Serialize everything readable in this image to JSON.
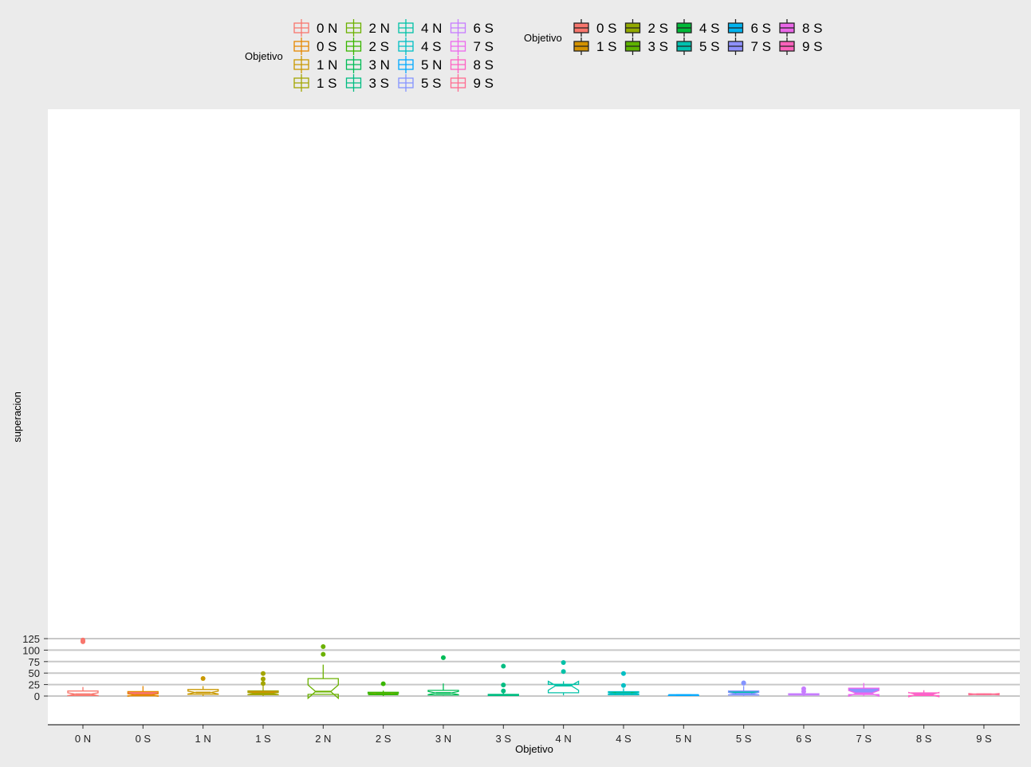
{
  "chart_data": {
    "type": "boxplot",
    "xlabel": "Objetivo",
    "ylabel": "superacion",
    "ylim": [
      -6,
      128
    ],
    "y_ticks": [
      0,
      25,
      50,
      75,
      100,
      125
    ],
    "grid": "horizontal major",
    "categories": [
      "0 N",
      "0 S",
      "1 N",
      "1 S",
      "2 N",
      "2 S",
      "3 N",
      "3 S",
      "4 N",
      "4 S",
      "5 N",
      "5 S",
      "6 S",
      "7 S",
      "8 S",
      "9 S"
    ],
    "boxes": [
      {
        "x": "0 N",
        "color": "#f8766d",
        "fill": "none",
        "q1": 1,
        "median": 4,
        "q3": 11,
        "whisker_low": 0,
        "whisker_high": 19.7,
        "notch_low": 0.9,
        "notch_high": 7.1,
        "outliers": [
          118.3,
          119.3,
          121.9
        ]
      },
      {
        "x": "0 S",
        "color": "#e58700",
        "fill": "#f8766d",
        "q1": 0.6,
        "median": 2.2,
        "q3": 9.8,
        "whisker_low": 0,
        "whisker_high": 21.8,
        "notch_low": -0.4,
        "notch_high": 4.8,
        "outliers": []
      },
      {
        "x": "1 N",
        "color": "#c99800",
        "fill": "none",
        "q1": 3.7,
        "median": 7.6,
        "q3": 14.3,
        "whisker_low": 0,
        "whisker_high": 21.6,
        "notch_low": 4.5,
        "notch_high": 10.7,
        "outliers": [
          38.2
        ]
      },
      {
        "x": "1 S",
        "color": "#a3a500",
        "fill": "#d39200",
        "q1": 3,
        "median": 5.4,
        "q3": 11.2,
        "whisker_low": 0,
        "whisker_high": 23.2,
        "notch_low": 3.1,
        "notch_high": 7.7,
        "outliers": [
          27.3,
          37.1,
          49
        ]
      },
      {
        "x": "2 N",
        "color": "#6bb100",
        "fill": "none",
        "q1": 3.7,
        "median": 9.7,
        "q3": 38,
        "whisker_low": 3.7,
        "whisker_high": 68.4,
        "notch_low": -4.8,
        "notch_high": 24.2,
        "outliers": [
          91,
          107.6
        ]
      },
      {
        "x": "2 S",
        "color": "#39b600",
        "fill": "#93aa00",
        "q1": 3,
        "median": 4.4,
        "q3": 8.2,
        "whisker_low": 0,
        "whisker_high": 11.8,
        "notch_low": 3,
        "notch_high": 5.8,
        "outliers": [
          26.8
        ]
      },
      {
        "x": "3 N",
        "color": "#00bc56",
        "fill": "none",
        "q1": 2.4,
        "median": 6.5,
        "q3": 12.4,
        "whisker_low": 1,
        "whisker_high": 27.4,
        "notch_low": 2.9,
        "notch_high": 10.1,
        "outliers": [
          83.6
        ]
      },
      {
        "x": "3 S",
        "color": "#00bd82",
        "fill": "#5eb300",
        "q1": 1,
        "median": 1.9,
        "q3": 3.6,
        "whisker_low": 0.5,
        "whisker_high": 6.5,
        "notch_low": 1.4,
        "notch_high": 2.4,
        "outliers": [
          11,
          24.1,
          65
        ]
      },
      {
        "x": "4 N",
        "color": "#00c1a7",
        "fill": "none",
        "q1": 7.2,
        "median": 22.7,
        "q3": 25.6,
        "whisker_low": 1.5,
        "whisker_high": 32.2,
        "notch_low": 12.7,
        "notch_high": 32.2,
        "outliers": [
          53.4,
          73
        ]
      },
      {
        "x": "4 S",
        "color": "#00bfc4",
        "fill": "#00ba38",
        "q1": 3,
        "median": 5.9,
        "q3": 9.6,
        "whisker_low": 1.3,
        "whisker_high": 16.6,
        "notch_low": 4.3,
        "notch_high": 7.5,
        "outliers": [
          23.1,
          49
        ]
      },
      {
        "x": "5 N",
        "color": "#00a9ff",
        "fill": "none",
        "q1": 1.4,
        "median": 2.1,
        "q3": 2.9,
        "whisker_low": 1.4,
        "whisker_high": 2.9,
        "notch_low": 1.2,
        "notch_high": 3,
        "outliers": []
      },
      {
        "x": "5 S",
        "color": "#8494ff",
        "fill": "#00c0af",
        "q1": 2.3,
        "median": 5.1,
        "q3": 10.9,
        "whisker_low": 0,
        "whisker_high": 21.9,
        "notch_low": 2.4,
        "notch_high": 7.8,
        "outliers": [
          28,
          28.6
        ]
      },
      {
        "x": "6 S",
        "color": "#c77cff",
        "fill": "#00b4f0",
        "q1": 2.3,
        "median": 3.7,
        "q3": 4.9,
        "whisker_low": 0,
        "whisker_high": 7.3,
        "notch_low": 2.9,
        "notch_high": 4.5,
        "outliers": [
          10,
          15.8
        ]
      },
      {
        "x": "7 S",
        "color": "#ed68ed",
        "fill": "#8f91ff",
        "q1": 3.3,
        "median": 6,
        "q3": 17.1,
        "whisker_low": 0,
        "whisker_high": 28.4,
        "notch_low": -0.4,
        "notch_high": 12.2,
        "outliers": []
      },
      {
        "x": "8 S",
        "color": "#ff61c3",
        "fill": "#ea67e8",
        "q1": 1,
        "median": 3.1,
        "q3": 6.9,
        "whisker_low": 0,
        "whisker_high": 12.7,
        "notch_low": -1.6,
        "notch_high": 7.8,
        "outliers": []
      },
      {
        "x": "9 S",
        "color": "#ff6c91",
        "fill": "#ff62bc",
        "q1": 3.3,
        "median": 3.9,
        "q3": 4.5,
        "whisker_low": 2.3,
        "whisker_high": 5.6,
        "notch_low": 2.4,
        "notch_high": 5.4,
        "outliers": []
      }
    ],
    "legends": [
      {
        "title": "Objetivo",
        "kind": "outline",
        "columns": 4,
        "entries": [
          {
            "label": "0 N",
            "color": "#f8766d"
          },
          {
            "label": "0 S",
            "color": "#e58700"
          },
          {
            "label": "1 N",
            "color": "#c99800"
          },
          {
            "label": "1 S",
            "color": "#a3a500"
          },
          {
            "label": "2 N",
            "color": "#6bb100"
          },
          {
            "label": "2 S",
            "color": "#39b600"
          },
          {
            "label": "3 N",
            "color": "#00bc56"
          },
          {
            "label": "3 S",
            "color": "#00bd82"
          },
          {
            "label": "4 N",
            "color": "#00c1a7"
          },
          {
            "label": "4 S",
            "color": "#00bfc4"
          },
          {
            "label": "5 N",
            "color": "#00a9ff"
          },
          {
            "label": "5 S",
            "color": "#8494ff"
          },
          {
            "label": "6 S",
            "color": "#c77cff"
          },
          {
            "label": "7 S",
            "color": "#ed68ed"
          },
          {
            "label": "8 S",
            "color": "#ff61c3"
          },
          {
            "label": "9 S",
            "color": "#ff6c91"
          }
        ]
      },
      {
        "title": "Objetivo",
        "kind": "filled",
        "columns": 5,
        "entries": [
          {
            "label": "0 S",
            "color": "#f8766d"
          },
          {
            "label": "1 S",
            "color": "#d39200"
          },
          {
            "label": "2 S",
            "color": "#93aa00"
          },
          {
            "label": "3 S",
            "color": "#5eb300"
          },
          {
            "label": "4 S",
            "color": "#00ba38"
          },
          {
            "label": "5 S",
            "color": "#00c0af"
          },
          {
            "label": "6 S",
            "color": "#00b4f0"
          },
          {
            "label": "7 S",
            "color": "#8f91ff"
          },
          {
            "label": "8 S",
            "color": "#ea67e8"
          },
          {
            "label": "9 S",
            "color": "#ff62bc"
          }
        ]
      }
    ],
    "legend_placement": "top",
    "colors": {
      "background": "#ebebeb",
      "panel": "#ffffff",
      "grid": "#c8c8c8"
    }
  }
}
